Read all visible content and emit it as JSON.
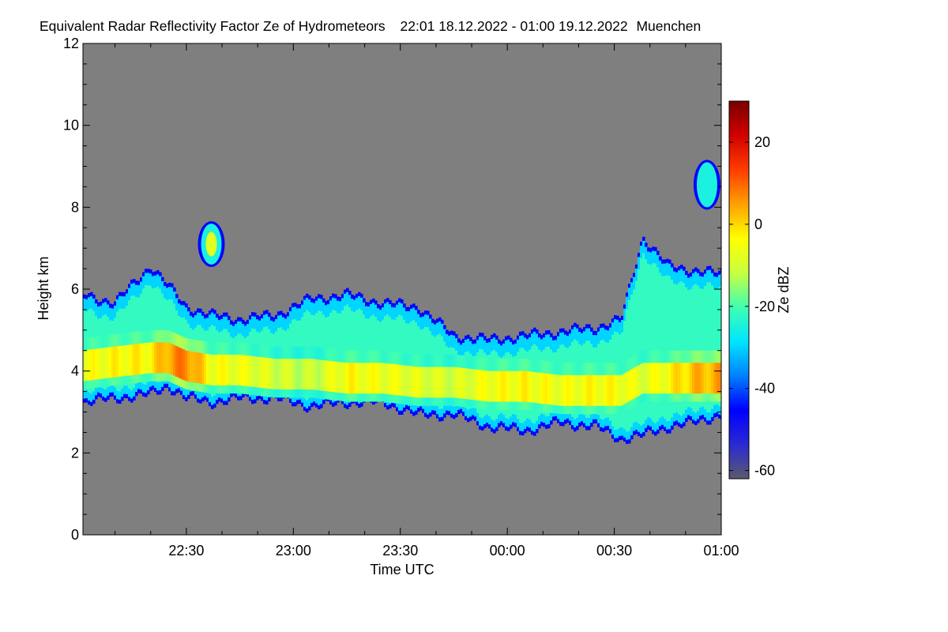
{
  "chart_data": {
    "type": "heatmap",
    "title": "Equivalent Radar Reflectivity Factor Ze of Hydrometeors",
    "time_range_text": "22:01 18.12.2022 - 01:00 19.12.2022",
    "location": "Muenchen",
    "xlabel": "Time UTC",
    "ylabel": "Height km",
    "x_ticks": [
      "22:30",
      "23:00",
      "23:30",
      "00:00",
      "00:30",
      "01:00"
    ],
    "x_tick_minutes_after_2200": [
      30,
      60,
      90,
      120,
      150,
      180
    ],
    "xlim_minutes_after_2200": [
      1,
      180
    ],
    "y_ticks": [
      "0",
      "2",
      "4",
      "6",
      "8",
      "10",
      "12"
    ],
    "y_tick_values": [
      0,
      2,
      4,
      6,
      8,
      10,
      12
    ],
    "ylim": [
      0,
      12
    ],
    "colorbar": {
      "label": "Ze dBZ",
      "range": [
        -62,
        30
      ],
      "ticks": [
        "20",
        "0",
        "-20",
        "-40",
        "-60"
      ],
      "tick_values": [
        20,
        0,
        -20,
        -40,
        -60
      ],
      "colors": [
        "#5a5a6e",
        "#2a2ad2",
        "#0000ff",
        "#0080ff",
        "#00e6ff",
        "#40ffb0",
        "#c8ff40",
        "#ffff00",
        "#ffa000",
        "#ff3c00",
        "#d20000",
        "#780000"
      ]
    },
    "background_color": "#7f7f7f",
    "cloud_layer": {
      "time_minutes_after_2200": [
        1,
        10,
        20,
        25,
        30,
        37,
        45,
        55,
        65,
        75,
        85,
        95,
        105,
        115,
        125,
        135,
        145,
        152,
        158,
        165,
        172,
        180
      ],
      "base_km": [
        3.3,
        3.4,
        3.5,
        3.7,
        3.4,
        3.3,
        3.4,
        3.4,
        3.2,
        3.3,
        3.3,
        3.0,
        3.0,
        2.7,
        2.6,
        2.8,
        2.7,
        2.4,
        2.5,
        2.7,
        2.8,
        3.0
      ],
      "top_km": [
        5.8,
        5.6,
        6.5,
        6.0,
        5.5,
        5.3,
        5.2,
        5.3,
        5.7,
        5.8,
        5.6,
        5.5,
        4.8,
        4.7,
        4.8,
        4.9,
        5.0,
        5.2,
        7.2,
        6.5,
        6.4,
        6.3
      ],
      "core_center_km": [
        4.1,
        4.2,
        4.3,
        4.3,
        4.1,
        4.0,
        4.0,
        3.9,
        3.9,
        3.8,
        3.8,
        3.7,
        3.7,
        3.6,
        3.6,
        3.5,
        3.5,
        3.5,
        3.8,
        3.8,
        3.8,
        3.8
      ],
      "core_ze_dbz": [
        -6,
        -4,
        -3,
        5,
        8,
        -5,
        -6,
        -10,
        -12,
        -4,
        -6,
        -8,
        -10,
        -5,
        -4,
        -6,
        -4,
        -5,
        -8,
        -4,
        2,
        4
      ]
    },
    "isolated_echoes": [
      {
        "time_minutes_after_2200": 37,
        "bottom_km": 6.6,
        "top_km": 7.6,
        "peak_ze_dbz": -8
      },
      {
        "time_minutes_after_2200": 176,
        "bottom_km": 8.0,
        "top_km": 9.1,
        "peak_ze_dbz": -25
      }
    ]
  }
}
